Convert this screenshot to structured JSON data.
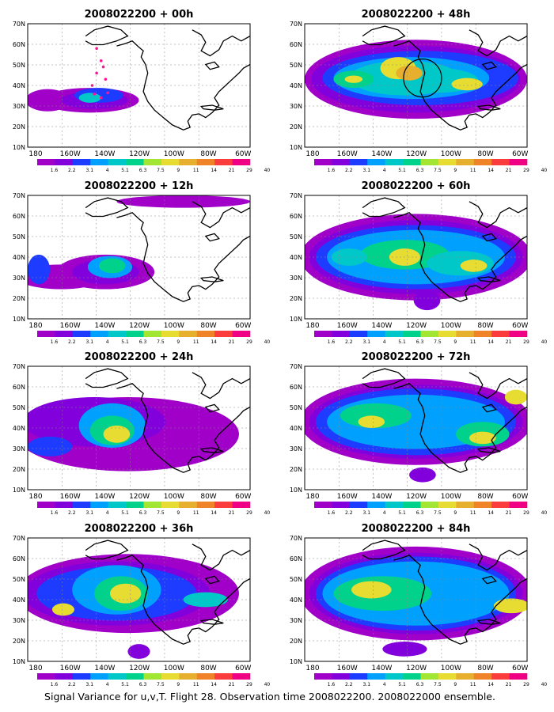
{
  "colorbar": {
    "labels": [
      "1.6",
      "2.2",
      "3.1",
      "4",
      "5.1",
      "6.3",
      "7.5",
      "9",
      "11",
      "14",
      "21",
      "29",
      "40"
    ],
    "colors": [
      "#a000c8",
      "#8200dc",
      "#1e3cff",
      "#00a0ff",
      "#00c8c8",
      "#00d28c",
      "#a0e632",
      "#e6dc32",
      "#e6af2d",
      "#f08228",
      "#fa3c3c",
      "#f00082"
    ]
  },
  "lat_labels": [
    "70N",
    "60N",
    "50N",
    "40N",
    "30N",
    "20N",
    "10N"
  ],
  "lon_labels": [
    "180",
    "160W",
    "140W",
    "120W",
    "100W",
    "80W",
    "60W"
  ],
  "panels": [
    {
      "title": "2008022200 + 00h"
    },
    {
      "title": "2008022200 + 48h"
    },
    {
      "title": "2008022200 + 12h"
    },
    {
      "title": "2008022200 + 60h"
    },
    {
      "title": "2008022200 + 24h"
    },
    {
      "title": "2008022200 + 72h"
    },
    {
      "title": "2008022200 + 36h"
    },
    {
      "title": "2008022200 + 84h"
    }
  ],
  "caption": "Signal Variance for u,v,T. Flight 28. Observation time 2008022200. 2008022000 ensemble."
}
